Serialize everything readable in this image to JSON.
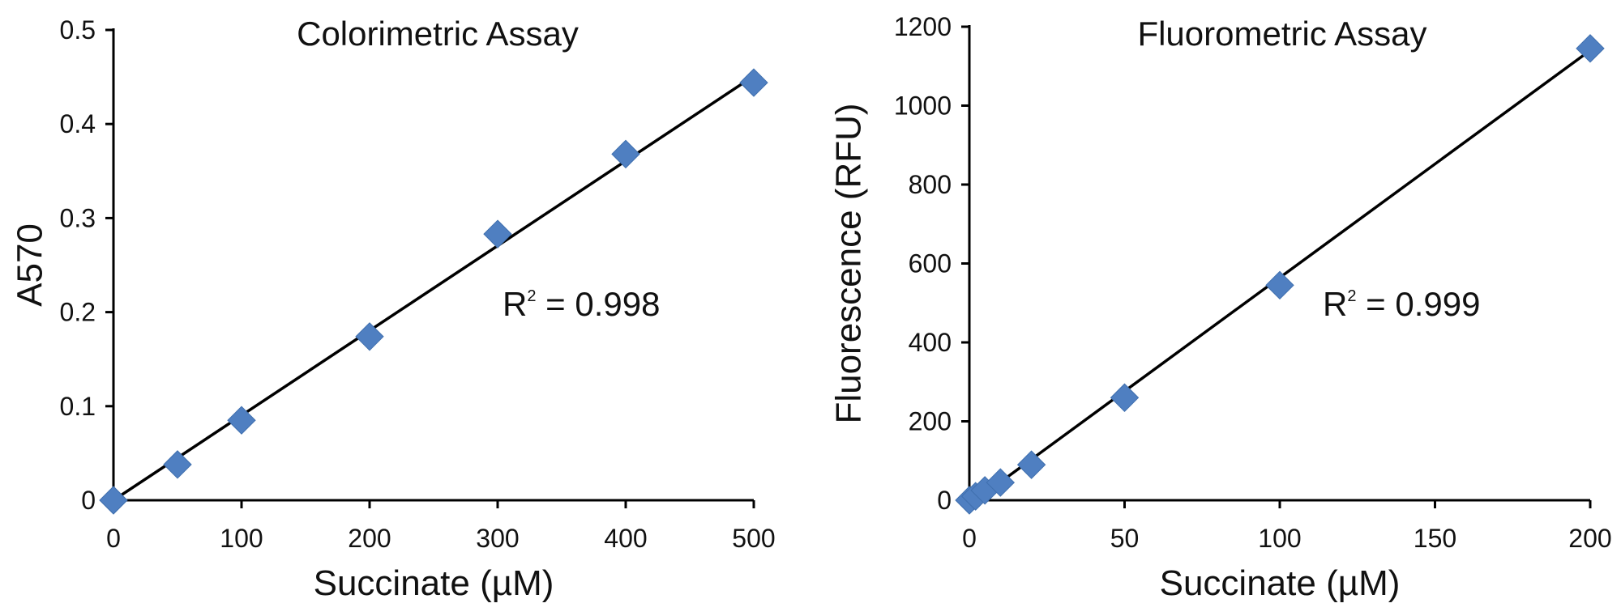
{
  "colors": {
    "marker": "#4f7fc1",
    "line": "#000000",
    "axis": "#000000"
  },
  "chart_data": [
    {
      "type": "scatter",
      "title": "Colorimetric Assay",
      "xlabel": "Succinate (µM)",
      "ylabel": "A570",
      "xlim": [
        0,
        500
      ],
      "ylim": [
        0,
        0.5
      ],
      "x_ticks": [
        "0",
        "100",
        "200",
        "300",
        "400",
        "500"
      ],
      "y_ticks": [
        "0",
        "0.1",
        "0.2",
        "0.3",
        "0.4",
        "0.5"
      ],
      "points": [
        {
          "x": 0,
          "y": 0.0
        },
        {
          "x": 50,
          "y": 0.038
        },
        {
          "x": 100,
          "y": 0.085
        },
        {
          "x": 200,
          "y": 0.174
        },
        {
          "x": 300,
          "y": 0.283
        },
        {
          "x": 400,
          "y": 0.368
        },
        {
          "x": 500,
          "y": 0.444
        }
      ],
      "trendline": {
        "x": [
          0,
          500
        ],
        "y": [
          0.0,
          0.451
        ]
      },
      "annotation": {
        "prefix": "R",
        "sup": "2",
        "text": " = 0.998"
      },
      "grid": false,
      "marker": "diamond"
    },
    {
      "type": "scatter",
      "title": "Fluorometric Assay",
      "xlabel": "Succinate (µM)",
      "ylabel": "Fluorescence (RFU)",
      "xlim": [
        0,
        200
      ],
      "ylim": [
        0,
        1200
      ],
      "x_ticks": [
        "0",
        "50",
        "100",
        "150",
        "200"
      ],
      "y_ticks": [
        "0",
        "200",
        "400",
        "600",
        "800",
        "1000",
        "1200"
      ],
      "points": [
        {
          "x": 0,
          "y": 0
        },
        {
          "x": 2,
          "y": 10
        },
        {
          "x": 5,
          "y": 25
        },
        {
          "x": 10,
          "y": 45
        },
        {
          "x": 20,
          "y": 90
        },
        {
          "x": 50,
          "y": 260
        },
        {
          "x": 100,
          "y": 545
        },
        {
          "x": 200,
          "y": 1145
        }
      ],
      "trendline": {
        "x": [
          2,
          200
        ],
        "y": [
          0,
          1140
        ]
      },
      "annotation": {
        "prefix": "R",
        "sup": "2",
        "text": " = 0.999"
      },
      "grid": false,
      "marker": "diamond"
    }
  ]
}
